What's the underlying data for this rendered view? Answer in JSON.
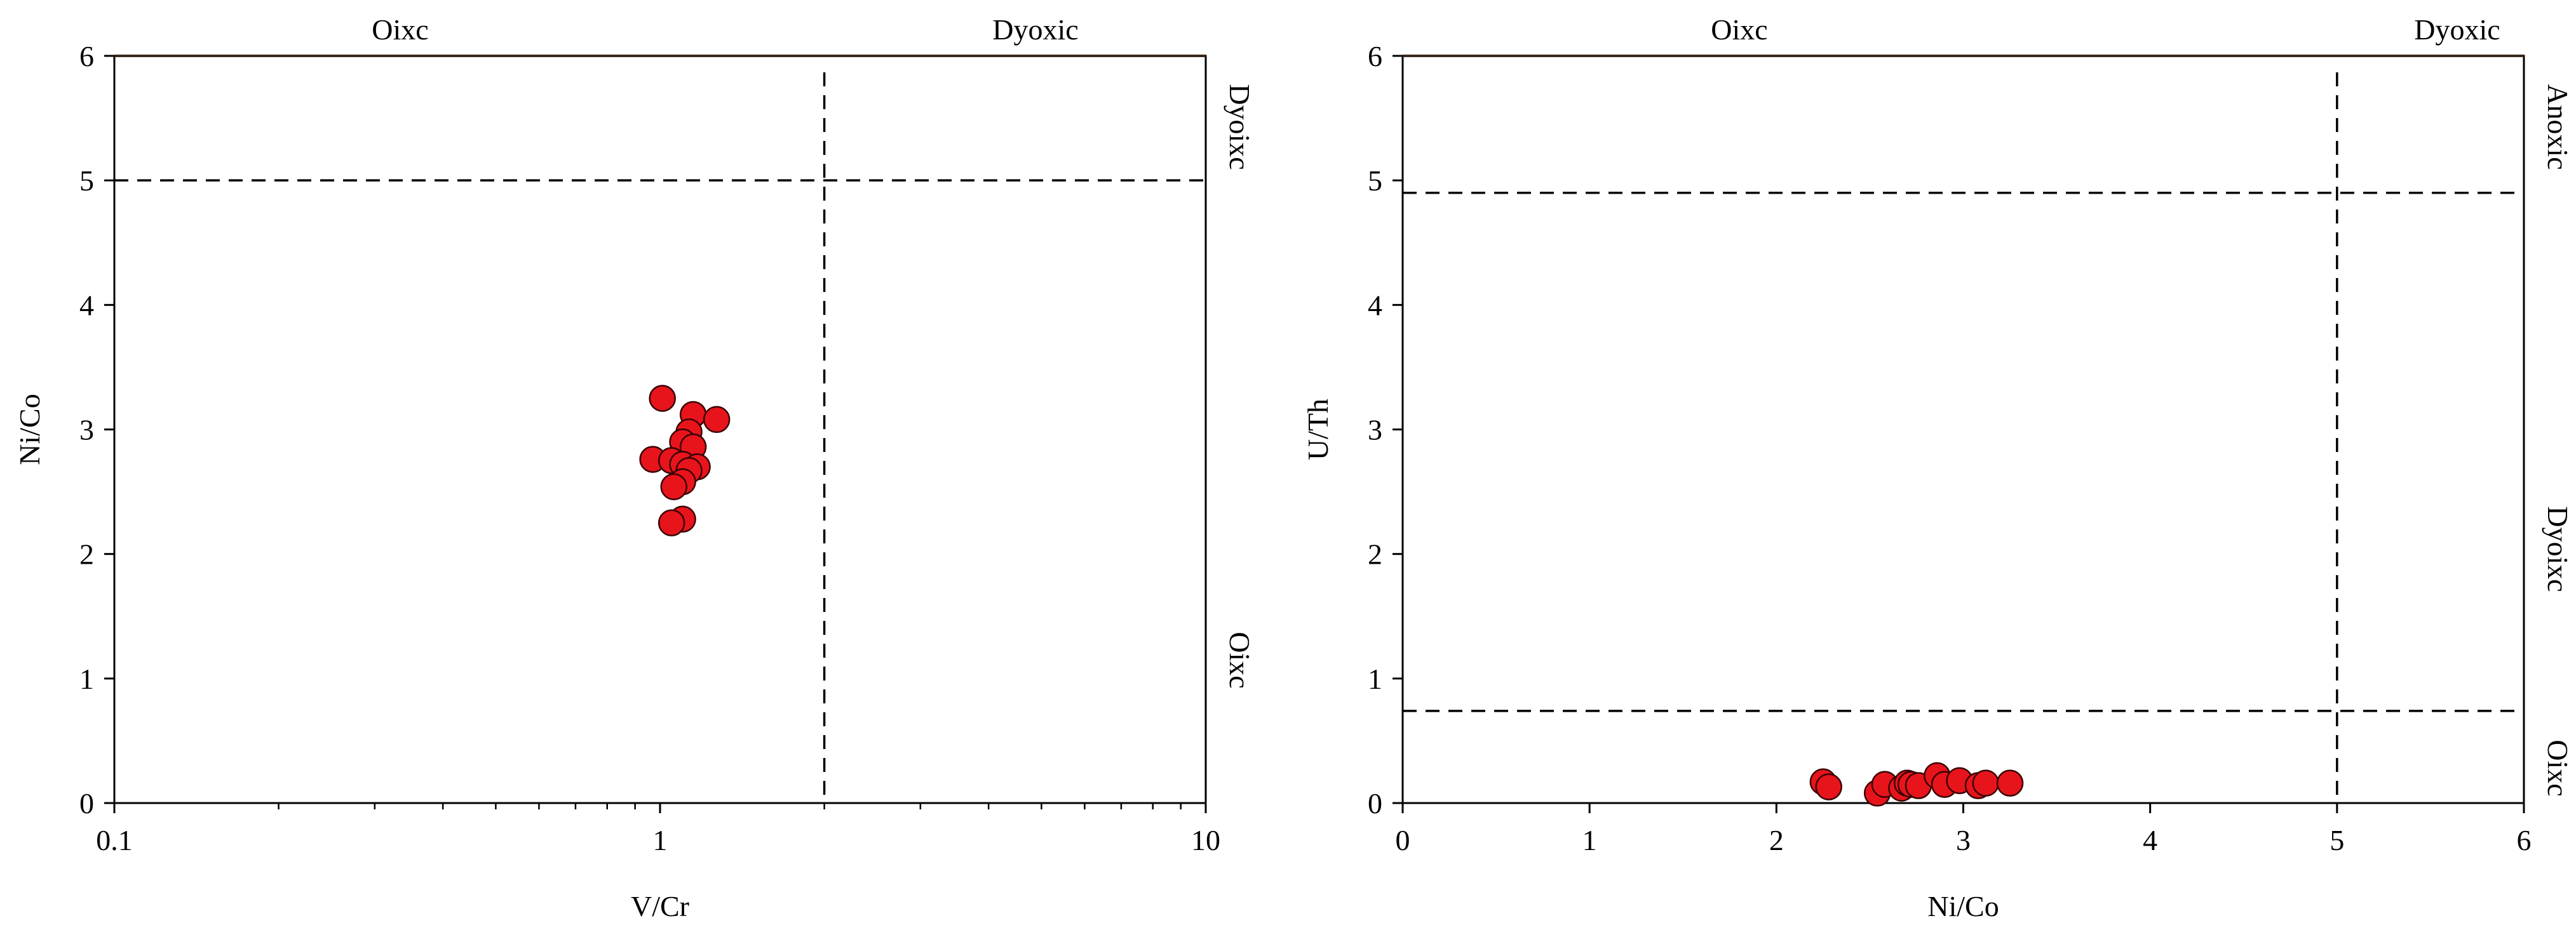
{
  "chart_data": [
    {
      "type": "scatter",
      "title": "",
      "xlabel": "V/Cr",
      "ylabel": "Ni/Co",
      "xscale": "log",
      "xlim": [
        0.1,
        10
      ],
      "ylim": [
        0,
        6
      ],
      "xticks": [
        0.1,
        1,
        10
      ],
      "xtick_labels": [
        "0.1",
        "1",
        "10"
      ],
      "yticks": [
        0,
        1,
        2,
        3,
        4,
        5,
        6
      ],
      "ytick_labels": [
        "0",
        "1",
        "2",
        "3",
        "4",
        "5",
        "6"
      ],
      "grid": false,
      "threshold_lines": {
        "x": [
          2
        ],
        "y": [
          5
        ]
      },
      "top_zone_labels": [
        "Oixc",
        "Dyoxic"
      ],
      "right_zone_labels": [
        "Dyoixc",
        "Oixc"
      ],
      "marker_color": "#e8141c",
      "series": [
        {
          "points": [
            [
              1.01,
              3.25
            ],
            [
              1.15,
              3.12
            ],
            [
              1.27,
              3.08
            ],
            [
              1.13,
              2.98
            ],
            [
              1.1,
              2.9
            ],
            [
              1.15,
              2.86
            ],
            [
              0.97,
              2.76
            ],
            [
              1.05,
              2.75
            ],
            [
              1.1,
              2.72
            ],
            [
              1.17,
              2.7
            ],
            [
              1.13,
              2.67
            ],
            [
              1.1,
              2.58
            ],
            [
              1.06,
              2.54
            ],
            [
              1.1,
              2.28
            ],
            [
              1.05,
              2.25
            ]
          ]
        }
      ]
    },
    {
      "type": "scatter",
      "title": "",
      "xlabel": "Ni/Co",
      "ylabel": "U/Th",
      "xscale": "linear",
      "xlim": [
        0,
        6
      ],
      "ylim": [
        0,
        6
      ],
      "xticks": [
        0,
        1,
        2,
        3,
        4,
        5,
        6
      ],
      "xtick_labels": [
        "0",
        "1",
        "2",
        "3",
        "4",
        "5",
        "6"
      ],
      "yticks": [
        0,
        1,
        2,
        3,
        4,
        5,
        6
      ],
      "ytick_labels": [
        "0",
        "1",
        "2",
        "3",
        "4",
        "5",
        "6"
      ],
      "grid": false,
      "threshold_lines": {
        "x": [
          5
        ],
        "y": [
          4.9,
          0.74
        ]
      },
      "top_zone_labels": [
        "Oixc",
        "Dyoxic"
      ],
      "right_zone_labels": [
        "Anoxic",
        "Dyoixc",
        "Oixc"
      ],
      "marker_color": "#e8141c",
      "series": [
        {
          "points": [
            [
              2.25,
              0.17
            ],
            [
              2.28,
              0.13
            ],
            [
              2.54,
              0.08
            ],
            [
              2.58,
              0.15
            ],
            [
              2.67,
              0.12
            ],
            [
              2.7,
              0.16
            ],
            [
              2.72,
              0.15
            ],
            [
              2.76,
              0.14
            ],
            [
              2.86,
              0.22
            ],
            [
              2.9,
              0.15
            ],
            [
              2.98,
              0.18
            ],
            [
              3.08,
              0.14
            ],
            [
              3.12,
              0.16
            ],
            [
              3.25,
              0.16
            ]
          ]
        }
      ]
    }
  ]
}
